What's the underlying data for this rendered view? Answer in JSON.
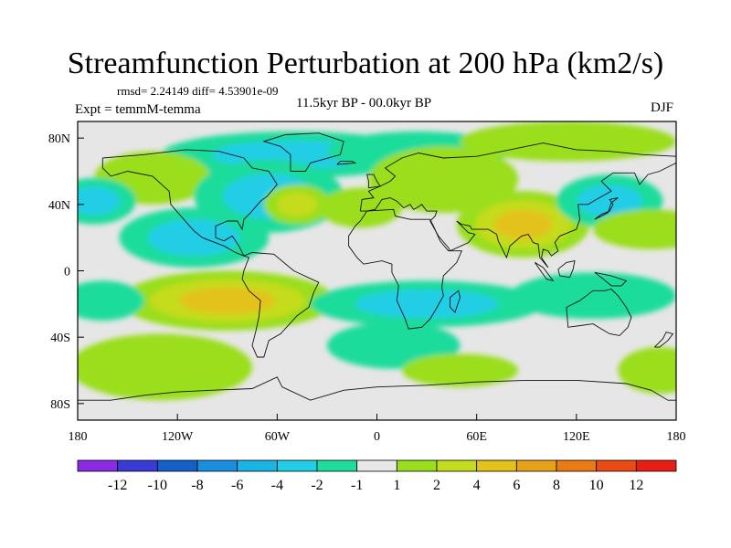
{
  "chart_data": {
    "type": "heatmap",
    "title": "Streamfunction Perturbation at 200 hPa (km2/s)",
    "stats": "rmsd= 2.24149 diff= 4.53901e-09",
    "experiment": "Expt = temmM-temma",
    "period": "11.5kyr BP - 00.0kyr BP",
    "season": "DJF",
    "projection": "cylindrical equidistant, -180..180 lon, -90..90 lat",
    "xlim": [
      -180,
      180
    ],
    "ylim": [
      -90,
      90
    ],
    "x_ticks": [
      {
        "lon": -180,
        "label": "180"
      },
      {
        "lon": -120,
        "label": "120W"
      },
      {
        "lon": -60,
        "label": "60W"
      },
      {
        "lon": 0,
        "label": "0"
      },
      {
        "lon": 60,
        "label": "60E"
      },
      {
        "lon": 120,
        "label": "120E"
      },
      {
        "lon": 180,
        "label": "180"
      }
    ],
    "y_ticks": [
      {
        "lat": 80,
        "label": "80N"
      },
      {
        "lat": 40,
        "label": "40N"
      },
      {
        "lat": 0,
        "label": "0"
      },
      {
        "lat": -40,
        "label": "40S"
      },
      {
        "lat": -80,
        "label": "80S"
      }
    ],
    "colorbar": {
      "colors": [
        "#8a2be2",
        "#3a3ad6",
        "#1560c8",
        "#1a8fe0",
        "#1ab4e6",
        "#22cee6",
        "#1edc9c",
        "#e8e8e8",
        "#9ade1e",
        "#c4dc1e",
        "#e4c21a",
        "#e8a21a",
        "#ea7a14",
        "#ea4a14",
        "#e81e14"
      ],
      "labels": [
        "-12",
        "-10",
        "-8",
        "-6",
        "-4",
        "-2",
        "-1",
        "1",
        "2",
        "4",
        "6",
        "8",
        "10",
        "12"
      ]
    },
    "anomalies": [
      {
        "lon": -50,
        "lat": 70,
        "value": -4.5,
        "rx": 80,
        "ry": 14
      },
      {
        "lon": 25,
        "lat": 72,
        "value": -3,
        "rx": 55,
        "ry": 12
      },
      {
        "lon": 115,
        "lat": 78,
        "value": 2.5,
        "rx": 65,
        "ry": 12
      },
      {
        "lon": -135,
        "lat": 56,
        "value": 3,
        "rx": 35,
        "ry": 16
      },
      {
        "lon": -170,
        "lat": 42,
        "value": -4,
        "rx": 25,
        "ry": 14
      },
      {
        "lon": -65,
        "lat": 45,
        "value": -4,
        "rx": 45,
        "ry": 22
      },
      {
        "lon": -48,
        "lat": 40,
        "value": 5,
        "rx": 20,
        "ry": 12
      },
      {
        "lon": -10,
        "lat": 38,
        "value": 2,
        "rx": 25,
        "ry": 12
      },
      {
        "lon": -110,
        "lat": 20,
        "value": -4,
        "rx": 45,
        "ry": 18
      },
      {
        "lon": 40,
        "lat": 55,
        "value": 2,
        "rx": 45,
        "ry": 20
      },
      {
        "lon": 88,
        "lat": 28,
        "value": 6,
        "rx": 40,
        "ry": 20
      },
      {
        "lon": 140,
        "lat": 42,
        "value": -4,
        "rx": 32,
        "ry": 16
      },
      {
        "lon": 165,
        "lat": 25,
        "value": 2,
        "rx": 35,
        "ry": 12
      },
      {
        "lon": -90,
        "lat": -18,
        "value": 6.5,
        "rx": 65,
        "ry": 18
      },
      {
        "lon": 30,
        "lat": -20,
        "value": -4,
        "rx": 70,
        "ry": 14
      },
      {
        "lon": 130,
        "lat": -15,
        "value": -3,
        "rx": 50,
        "ry": 14
      },
      {
        "lon": -165,
        "lat": -18,
        "value": -2,
        "rx": 25,
        "ry": 12
      },
      {
        "lon": 10,
        "lat": -45,
        "value": -3,
        "rx": 40,
        "ry": 14
      },
      {
        "lon": -130,
        "lat": -58,
        "value": 3,
        "rx": 55,
        "ry": 20
      },
      {
        "lon": 50,
        "lat": -60,
        "value": 2,
        "rx": 35,
        "ry": 10
      },
      {
        "lon": 170,
        "lat": -60,
        "value": 2,
        "rx": 25,
        "ry": 14
      }
    ]
  }
}
